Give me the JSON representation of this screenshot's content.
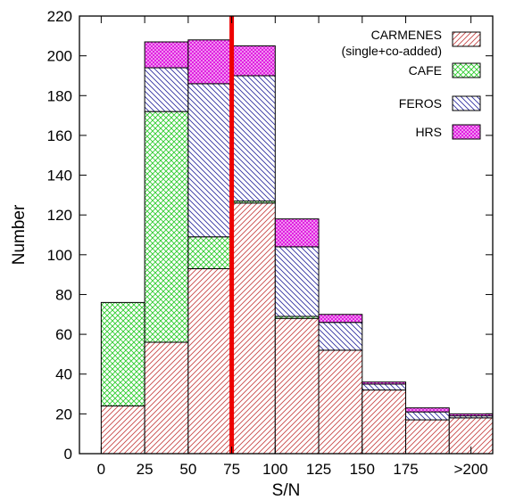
{
  "chart_data": {
    "type": "bar",
    "stacked": true,
    "xlabel": "S/N",
    "ylabel": "Number",
    "ylim": [
      0,
      220
    ],
    "yticks": [
      0,
      20,
      40,
      60,
      80,
      100,
      120,
      140,
      160,
      180,
      200,
      220
    ],
    "xticks": [
      {
        "label": "0",
        "value": 0
      },
      {
        "label": "25",
        "value": 25
      },
      {
        "label": "50",
        "value": 50
      },
      {
        "label": "75",
        "value": 75
      },
      {
        "label": "100",
        "value": 100
      },
      {
        "label": "125",
        "value": 125
      },
      {
        "label": "150",
        "value": 150
      },
      {
        "label": "175",
        "value": 175
      },
      {
        "label": ">200",
        "value": 212.5
      }
    ],
    "xlim": [
      -12.5,
      225
    ],
    "bins": [
      {
        "start": 0,
        "end": 25
      },
      {
        "start": 25,
        "end": 50
      },
      {
        "start": 50,
        "end": 75
      },
      {
        "start": 75,
        "end": 100
      },
      {
        "start": 100,
        "end": 125
      },
      {
        "start": 125,
        "end": 150
      },
      {
        "start": 150,
        "end": 175
      },
      {
        "start": 175,
        "end": 200
      },
      {
        "start": 200,
        "end": 225
      }
    ],
    "series": [
      {
        "key": "carmenes",
        "name": "CARMENES",
        "name_line2": "(single+co-added)",
        "color": "#c84848",
        "values": [
          24,
          56,
          93,
          126,
          68,
          52,
          32,
          17,
          18
        ]
      },
      {
        "key": "cafe",
        "name": "CAFE",
        "color": "#2ecc2e",
        "values": [
          52,
          116,
          16,
          1,
          1,
          0,
          0,
          0,
          0
        ]
      },
      {
        "key": "feros",
        "name": "FEROS",
        "color": "#3030a0",
        "values": [
          0,
          22,
          77,
          63,
          35,
          14,
          3,
          4,
          1
        ]
      },
      {
        "key": "hrs",
        "name": "HRS",
        "color": "#e020e0",
        "values": [
          0,
          13,
          22,
          15,
          14,
          4,
          1,
          2,
          1
        ]
      }
    ],
    "reference_line": {
      "x": 75,
      "color": "#ee0000"
    },
    "legend_position": "top-right",
    "grid": false
  }
}
